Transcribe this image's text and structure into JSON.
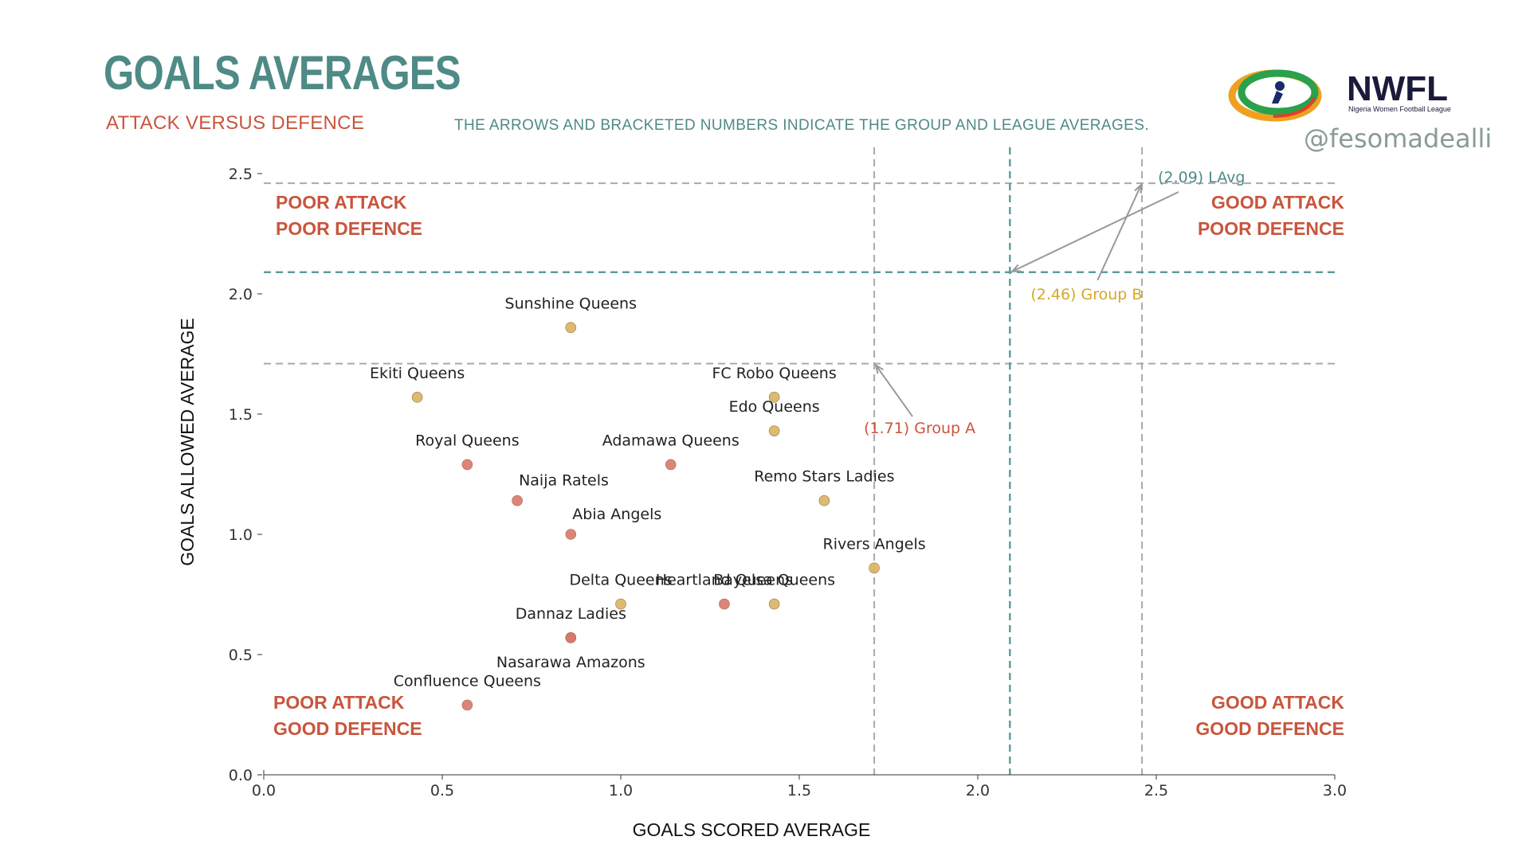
{
  "header": {
    "title": "GOALS AVERAGES",
    "subtitle": "ATTACK VERSUS DEFENCE",
    "note": "THE ARROWS AND BRACKETED NUMBERS INDICATE THE GROUP AND LEAGUE AVERAGES.",
    "handle": "@fesomadealli"
  },
  "logo": {
    "name": "NWFL",
    "tagline": "Nigeria Women Football League"
  },
  "colors": {
    "teal": "#4e8a86",
    "red": "#c8553d",
    "gold": "#d4a82a",
    "groupA_point": "#d9776a",
    "groupB_point": "#d8b460",
    "grid": "#aaaaaa",
    "league_line": "#5a9a9a"
  },
  "chart_data": {
    "type": "scatter",
    "xlabel": "GOALS SCORED AVERAGE",
    "ylabel": "GOALS ALLOWED AVERAGE",
    "xlim": [
      0,
      3
    ],
    "ylim": [
      0,
      2.5
    ],
    "xticks": [
      "0.0",
      "0.5",
      "1.0",
      "1.5",
      "2.0",
      "2.5",
      "3.0"
    ],
    "yticks": [
      "0.0",
      "0.5",
      "1.0",
      "1.5",
      "2.0",
      "2.5"
    ],
    "grid": false,
    "points": [
      {
        "name": "Sunshine Queens",
        "x": 0.86,
        "y": 1.86,
        "group": "B"
      },
      {
        "name": "Ekiti Queens",
        "x": 0.43,
        "y": 1.57,
        "group": "B"
      },
      {
        "name": "FC Robo Queens",
        "x": 1.43,
        "y": 1.57,
        "group": "B"
      },
      {
        "name": "Edo Queens",
        "x": 1.43,
        "y": 1.43,
        "group": "B"
      },
      {
        "name": "Royal Queens",
        "x": 0.57,
        "y": 1.29,
        "group": "A"
      },
      {
        "name": "Adamawa Queens",
        "x": 1.14,
        "y": 1.29,
        "group": "A"
      },
      {
        "name": "Naija Ratels",
        "x": 0.71,
        "y": 1.14,
        "group": "A"
      },
      {
        "name": "Remo Stars Ladies",
        "x": 1.57,
        "y": 1.14,
        "group": "B"
      },
      {
        "name": "Abia Angels",
        "x": 0.86,
        "y": 1.0,
        "group": "A"
      },
      {
        "name": "Rivers Angels",
        "x": 1.71,
        "y": 0.86,
        "group": "B"
      },
      {
        "name": "Delta Queens",
        "x": 1.0,
        "y": 0.71,
        "group": "B"
      },
      {
        "name": "Bayelsa Queens",
        "x": 1.43,
        "y": 0.71,
        "group": "B"
      },
      {
        "name": "Heartland Queens",
        "x": 1.29,
        "y": 0.71,
        "group": "A"
      },
      {
        "name": "Dannaz Ladies",
        "x": 0.86,
        "y": 0.57,
        "group": "A"
      },
      {
        "name": "Nasarawa Amazons",
        "x": 0.86,
        "y": 0.57,
        "group": "A"
      },
      {
        "name": "Confluence Queens",
        "x": 0.57,
        "y": 0.29,
        "group": "A"
      }
    ],
    "averages": [
      {
        "label": "(1.71) Group A",
        "value": 1.71,
        "kind": "group-a"
      },
      {
        "label": "(2.46) Group B",
        "value": 2.46,
        "kind": "group-b"
      },
      {
        "label": "(2.09) LAvg",
        "value": 2.09,
        "kind": "league"
      }
    ],
    "quadrants": [
      {
        "line1": "POOR ATTACK",
        "line2": "POOR DEFENCE",
        "position": "top-left"
      },
      {
        "line1": "GOOD ATTACK",
        "line2": "POOR DEFENCE",
        "position": "top-right"
      },
      {
        "line1": "POOR ATTACK",
        "line2": "GOOD DEFENCE",
        "position": "bottom-left"
      },
      {
        "line1": "GOOD ATTACK",
        "line2": "GOOD DEFENCE",
        "position": "bottom-right"
      }
    ]
  }
}
